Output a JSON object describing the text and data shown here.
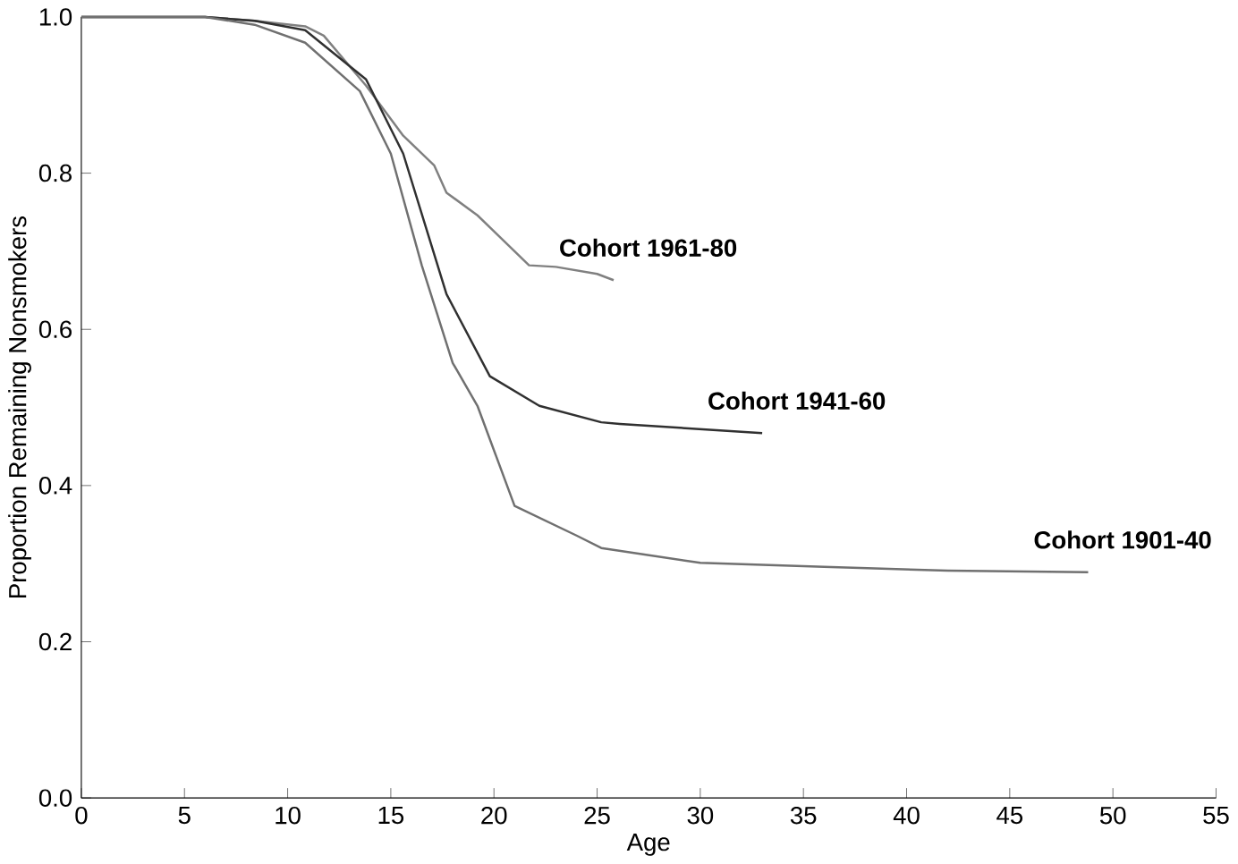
{
  "chart_data": {
    "type": "line",
    "xlabel": "Age",
    "ylabel": "Proportion Remaining Nonsmokers",
    "xlim": [
      0,
      55
    ],
    "ylim": [
      0,
      1
    ],
    "xticks": [
      0,
      5,
      10,
      15,
      20,
      25,
      30,
      35,
      40,
      45,
      50,
      55
    ],
    "yticks": [
      {
        "value": 0,
        "label": "0.0"
      },
      {
        "value": 0.2,
        "label": "0.2"
      },
      {
        "value": 0.4,
        "label": "0.4"
      },
      {
        "value": 0.6,
        "label": "0.6"
      },
      {
        "value": 0.8,
        "label": "0.8"
      },
      {
        "value": 1,
        "label": "1.0"
      }
    ],
    "grid": false,
    "marker": "none",
    "line_style": "solid",
    "series": [
      {
        "name": "Cohort 1961-80",
        "color": "#808080",
        "x": [
          0,
          6,
          8.4,
          10.85,
          11.75,
          13.8,
          15.6,
          17.1,
          17.7,
          19.2,
          21.7,
          23,
          25,
          25.8
        ],
        "values": [
          1,
          1,
          0.995,
          0.988,
          0.976,
          0.912,
          0.848,
          0.81,
          0.775,
          0.746,
          0.682,
          0.68,
          0.671,
          0.663
        ]
      },
      {
        "name": "Cohort 1941-60",
        "color": "#303030",
        "x": [
          0,
          6,
          8.4,
          10.85,
          13.8,
          15.6,
          17.7,
          19.8,
          22.2,
          25.2,
          26.1,
          33
        ],
        "values": [
          1,
          1,
          0.995,
          0.983,
          0.92,
          0.825,
          0.645,
          0.54,
          0.502,
          0.481,
          0.479,
          0.467
        ]
      },
      {
        "name": "Cohort 1901-40",
        "color": "#707070",
        "x": [
          0,
          6,
          8.4,
          10.85,
          13.5,
          15,
          16.5,
          18,
          19.2,
          20.1,
          21,
          24,
          25.2,
          30,
          36,
          42,
          48.8
        ],
        "values": [
          1,
          1,
          0.99,
          0.967,
          0.905,
          0.825,
          0.682,
          0.557,
          0.502,
          0.438,
          0.374,
          0.336,
          0.32,
          0.301,
          0.296,
          0.291,
          0.289
        ]
      }
    ]
  }
}
